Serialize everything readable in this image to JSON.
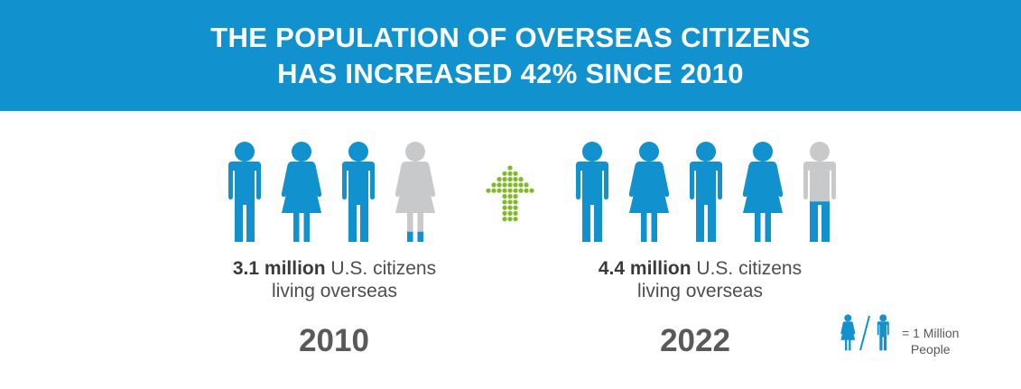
{
  "banner": {
    "line1": "THE POPULATION OF OVERSEAS CITIZENS",
    "line2": "HAS INCREASED 42% SINCE 2010"
  },
  "groups": [
    {
      "caption_bold": "3.1 million",
      "caption_rest": " U.S. citizens",
      "caption_line2": "living overseas",
      "year": "2010",
      "value_millions": 3.1,
      "icons": [
        "male-icon",
        "female-icon",
        "male-icon",
        "female-icon"
      ]
    },
    {
      "caption_bold": "4.4 million",
      "caption_rest": " U.S. citizens",
      "caption_line2": "living overseas",
      "year": "2022",
      "value_millions": 4.4,
      "icons": [
        "male-icon",
        "female-icon",
        "male-icon",
        "female-icon",
        "male-icon"
      ]
    }
  ],
  "arrow_icon": "up-arrow-dotted-icon",
  "legend": {
    "line1": "= 1 Million",
    "line2": "People",
    "icons": [
      "female-icon",
      "male-icon"
    ]
  },
  "colors": {
    "banner": "#1192cf",
    "icon_filled": "#1192cf",
    "icon_empty": "#c8c9cb",
    "arrow": "#7fba27",
    "text": "#58595b"
  }
}
